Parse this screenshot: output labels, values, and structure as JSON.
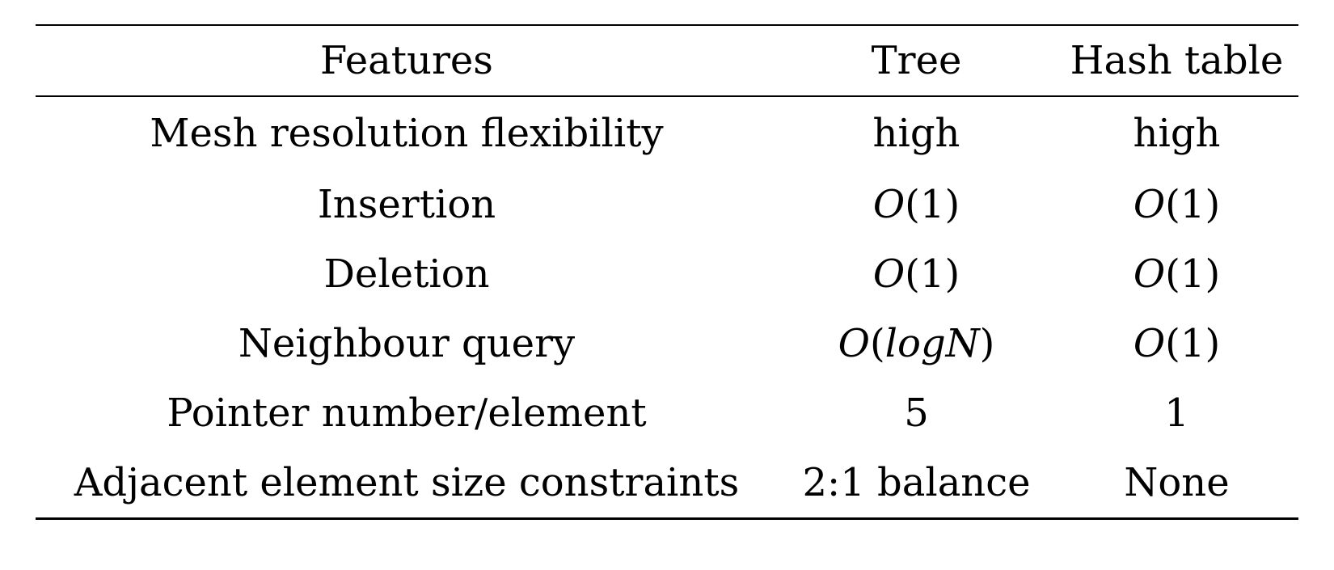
{
  "table": {
    "headers": [
      "Features",
      "Tree",
      "Hash table"
    ],
    "rows": [
      {
        "feature": "Mesh resolution flexibility",
        "tree": "high",
        "hash": "high"
      },
      {
        "feature": "Insertion",
        "tree": "O(1)",
        "hash": "O(1)"
      },
      {
        "feature": "Deletion",
        "tree": "O(1)",
        "hash": "O(1)"
      },
      {
        "feature": "Neighbour query",
        "tree": "O(logN)",
        "hash": "O(1)"
      },
      {
        "feature": "Pointer number/element",
        "tree": "5",
        "hash": "1"
      },
      {
        "feature": "Adjacent element size constraints",
        "tree": "2:1 balance",
        "hash": "None"
      }
    ]
  }
}
